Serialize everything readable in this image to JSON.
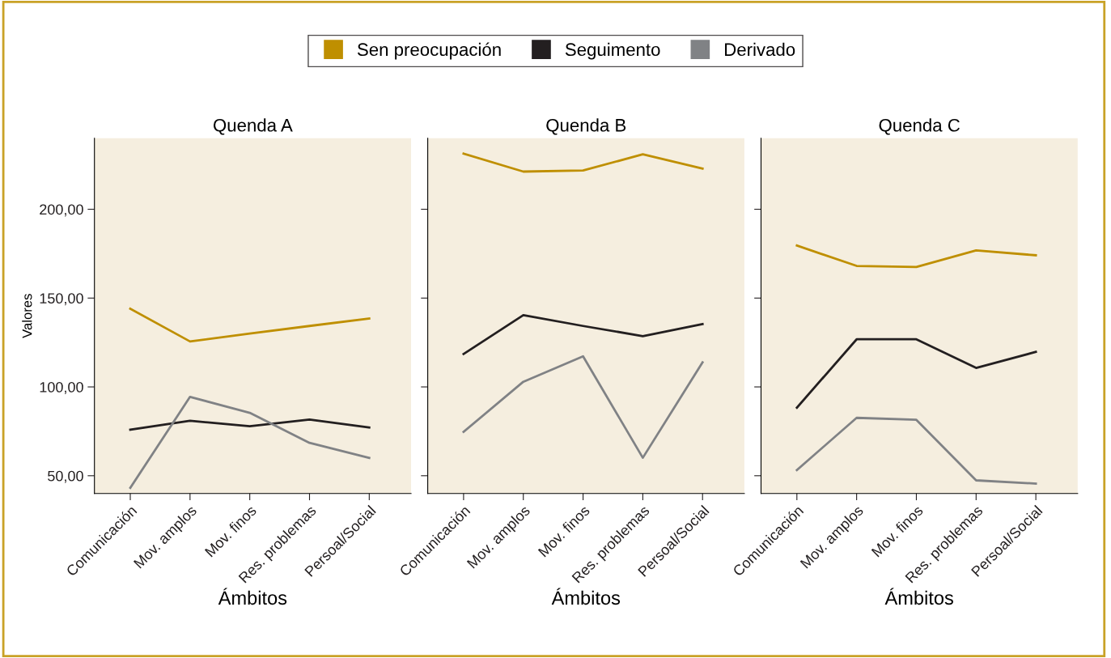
{
  "chart_data": [
    {
      "type": "line",
      "title": "Quenda A",
      "xlabel": "Ámbitos",
      "ylabel": "Valores",
      "legend": "top",
      "categories": [
        "Comunicación",
        "Mov. amplos",
        "Mov. finos",
        "Res. problemas",
        "Persoal/Social"
      ],
      "ylim": [
        40,
        240
      ],
      "yticks": [
        {
          "value": 50,
          "label": "50,00"
        },
        {
          "value": 100,
          "label": "100,00"
        },
        {
          "value": 150,
          "label": "150,00"
        },
        {
          "value": 200,
          "label": "200,00"
        }
      ],
      "series": [
        {
          "name": "Sen preocupación",
          "color": "#bf8f00",
          "values": [
            144,
            125.6,
            130,
            134.3,
            138.5
          ]
        },
        {
          "name": "Seguimento",
          "color": "#231f20",
          "values": [
            75.9,
            80.9,
            77.9,
            81.6,
            77.2
          ]
        },
        {
          "name": "Derivado",
          "color": "#808285",
          "values": [
            43.2,
            94.4,
            85.4,
            68.5,
            60
          ]
        }
      ]
    },
    {
      "type": "line",
      "title": "Quenda B",
      "xlabel": "Ámbitos",
      "tick_labels": "x",
      "categories": [
        "Comunicación",
        "Mov. amplos",
        "Mov. finos",
        "Res. problemas",
        "Persoal/Social"
      ],
      "ylim": [
        40,
        240
      ],
      "yticks": [
        {
          "value": 50,
          "label": null
        },
        {
          "value": 100,
          "label": null
        },
        {
          "value": 150,
          "label": null
        },
        {
          "value": 200,
          "label": null
        }
      ],
      "series": [
        {
          "color": "#bf8f00",
          "values": [
            231.3,
            221.2,
            221.8,
            230.9,
            222.9
          ]
        },
        {
          "color": "#231f20",
          "values": [
            118.5,
            140.4,
            134.3,
            128.6,
            135.4
          ]
        },
        {
          "color": "#808285",
          "values": [
            74.7,
            102.9,
            117.2,
            60.1,
            113.8
          ]
        }
      ]
    },
    {
      "type": "line",
      "title": "Quenda C",
      "xlabel": "Ámbitos",
      "tick_labels": "x",
      "categories": [
        "Comunicación",
        "Mov. amplos",
        "Mov. finos",
        "Res. problemas",
        "Persoal/Social"
      ],
      "ylim": [
        40,
        240
      ],
      "yticks": [
        {
          "value": 50,
          "label": null
        },
        {
          "value": 100,
          "label": null
        },
        {
          "value": 150,
          "label": null
        },
        {
          "value": 200,
          "label": null
        }
      ],
      "series": [
        {
          "color": "#bf8f00",
          "values": [
            179.6,
            168.1,
            167.5,
            176.8,
            174.1
          ]
        },
        {
          "color": "#231f20",
          "values": [
            88.3,
            126.8,
            126.8,
            110.7,
            119.7
          ]
        },
        {
          "color": "#808285",
          "values": [
            53.2,
            82.6,
            81.5,
            47.4,
            45.6
          ]
        }
      ]
    }
  ]
}
